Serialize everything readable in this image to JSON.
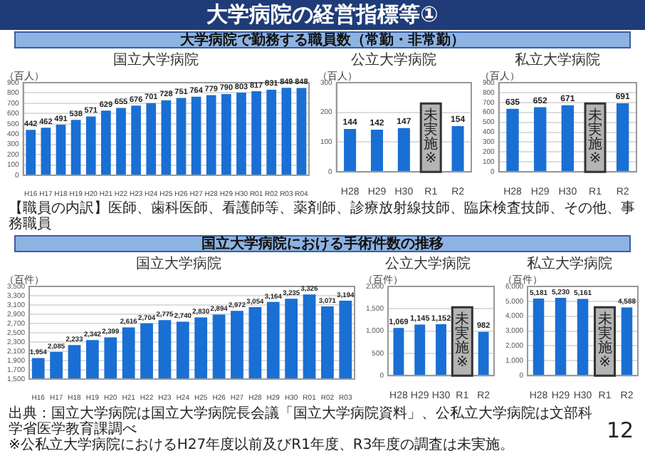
{
  "chart_data": [
    {
      "type": "other",
      "title": "大学病院の経営指標等①",
      "annotations": [
        "12"
      ]
    },
    {
      "type": "bar",
      "subtitle": "大学病院で勤務する職員数（常勤・非常勤）",
      "title": "国立大学病院",
      "ylabel": "（百人）",
      "categories": [
        "H16",
        "H17",
        "H18",
        "H19",
        "H20",
        "H21",
        "H22",
        "H23",
        "H24",
        "H25",
        "H26",
        "H27",
        "H28",
        "H29",
        "H30",
        "R01",
        "R02",
        "R03",
        "R04"
      ],
      "values": [
        442,
        462,
        491,
        538,
        571,
        629,
        655,
        676,
        701,
        728,
        751,
        764,
        779,
        790,
        803,
        817,
        831,
        849,
        848
      ],
      "color": "#1a6fd4",
      "ylim": [
        0,
        900
      ],
      "yticks": [
        0,
        100,
        200,
        300,
        400,
        500,
        600,
        700,
        800,
        900
      ],
      "grid": "y",
      "data_labels": true,
      "annotations": [
        "【職員の内訳】医師、歯科医師、看護師等、薬剤師、診療放射線技師、臨床検査技師、その他、事務職員"
      ]
    },
    {
      "type": "bar",
      "title": "公立大学病院",
      "ylabel": "（百人）",
      "categories": [
        "H28",
        "H29",
        "H30",
        "R1",
        "R2"
      ],
      "values": [
        144,
        142,
        147,
        null,
        154
      ],
      "color": "#1a6fd4",
      "ylim": [
        0,
        300
      ],
      "yticks": [
        0,
        100,
        200,
        300
      ],
      "grid": "y",
      "data_labels": true,
      "annotations": [
        "未実施※"
      ]
    },
    {
      "type": "bar",
      "title": "私立大学病院",
      "ylabel": "（百人）",
      "categories": [
        "H28",
        "H29",
        "H30",
        "R1",
        "R2"
      ],
      "values": [
        635,
        652,
        671,
        null,
        691
      ],
      "color": "#1a6fd4",
      "ylim": [
        0,
        900
      ],
      "yticks": [
        0,
        100,
        200,
        300,
        400,
        500,
        600,
        700,
        800,
        900
      ],
      "grid": "y",
      "data_labels": true,
      "annotations": [
        "未実施※"
      ]
    },
    {
      "type": "bar",
      "subtitle": "国立大学病院における手術件数の推移",
      "title": "国立大学病院",
      "ylabel": "（百件）",
      "categories": [
        "H16",
        "H17",
        "H18",
        "H19",
        "H20",
        "H21",
        "H22",
        "H23",
        "H24",
        "H25",
        "H26",
        "H27",
        "H28",
        "H29",
        "H30",
        "R01",
        "R02",
        "R03"
      ],
      "values": [
        1954,
        2085,
        2233,
        2342,
        2399,
        2616,
        2704,
        2775,
        2740,
        2830,
        2894,
        2972,
        3054,
        3164,
        3235,
        3326,
        3071,
        3194
      ],
      "value_labels": [
        "1,954",
        "2,085",
        "2,233",
        "2,342",
        "2,399",
        "2,616",
        "2,704",
        "2,775",
        "2,740",
        "2,830",
        "2,894",
        "2,972",
        "3,054",
        "3,164",
        "3,235",
        "3,326",
        "3,071",
        "3,194"
      ],
      "color": "#1a6fd4",
      "ylim": [
        1500,
        3500
      ],
      "yticks": [
        {
          "value": 1500,
          "label": "1,500"
        },
        {
          "value": 1700,
          "label": "1,700"
        },
        {
          "value": 1900,
          "label": "1,900"
        },
        {
          "value": 2100,
          "label": "2,100"
        },
        {
          "value": 2300,
          "label": "2,300"
        },
        {
          "value": 2500,
          "label": "2,500"
        },
        {
          "value": 2700,
          "label": "2,700"
        },
        {
          "value": 2900,
          "label": "2,900"
        },
        {
          "value": 3100,
          "label": "3,100"
        },
        {
          "value": 3300,
          "label": "3,300"
        },
        {
          "value": 3500,
          "label": "3,500"
        }
      ],
      "grid": "y"
    },
    {
      "type": "bar",
      "title": "公立大学病院",
      "ylabel": "（百件）",
      "categories": [
        "H28",
        "H29",
        "H30",
        "R1",
        "R2"
      ],
      "values": [
        1069,
        1145,
        1152,
        null,
        982
      ],
      "value_labels": [
        "1,069",
        "1,145",
        "1,152",
        null,
        "982"
      ],
      "color": "#1a6fd4",
      "ylim": [
        0,
        2000
      ],
      "yticks": [
        0,
        500,
        {
          "value": 1000,
          "label": "1,000"
        },
        {
          "value": 1500,
          "label": "1,500"
        },
        {
          "value": 2000,
          "label": "2,000"
        }
      ],
      "grid": "y",
      "annotations": [
        "未実施※"
      ]
    },
    {
      "type": "bar",
      "title": "私立大学病院",
      "ylabel": "（百件）",
      "categories": [
        "H28",
        "H29",
        "H30",
        "R1",
        "R2"
      ],
      "values": [
        5181,
        5230,
        5161,
        null,
        4588
      ],
      "value_labels": [
        "5,181",
        "5,230",
        "5,161",
        null,
        "4,588"
      ],
      "color": "#1a6fd4",
      "ylim": [
        0,
        6000
      ],
      "yticks": [
        0,
        {
          "value": 1000,
          "label": "1,000"
        },
        {
          "value": 2000,
          "label": "2,000"
        },
        {
          "value": 3000,
          "label": "3,000"
        },
        {
          "value": 4000,
          "label": "4,000"
        },
        {
          "value": 5000,
          "label": "5,000"
        },
        {
          "value": 6000,
          "label": "6,000"
        }
      ],
      "grid": "y",
      "annotations": [
        "未実施※",
        "出典：国立大学病院は国立大学病院長会議「国立大学病院資料」、公私立大学病院は文部科学省医学教育課調べ",
        "※公私立大学病院におけるH27年度以前及びR1年度、R3年度の調査は未実施。"
      ]
    }
  ]
}
